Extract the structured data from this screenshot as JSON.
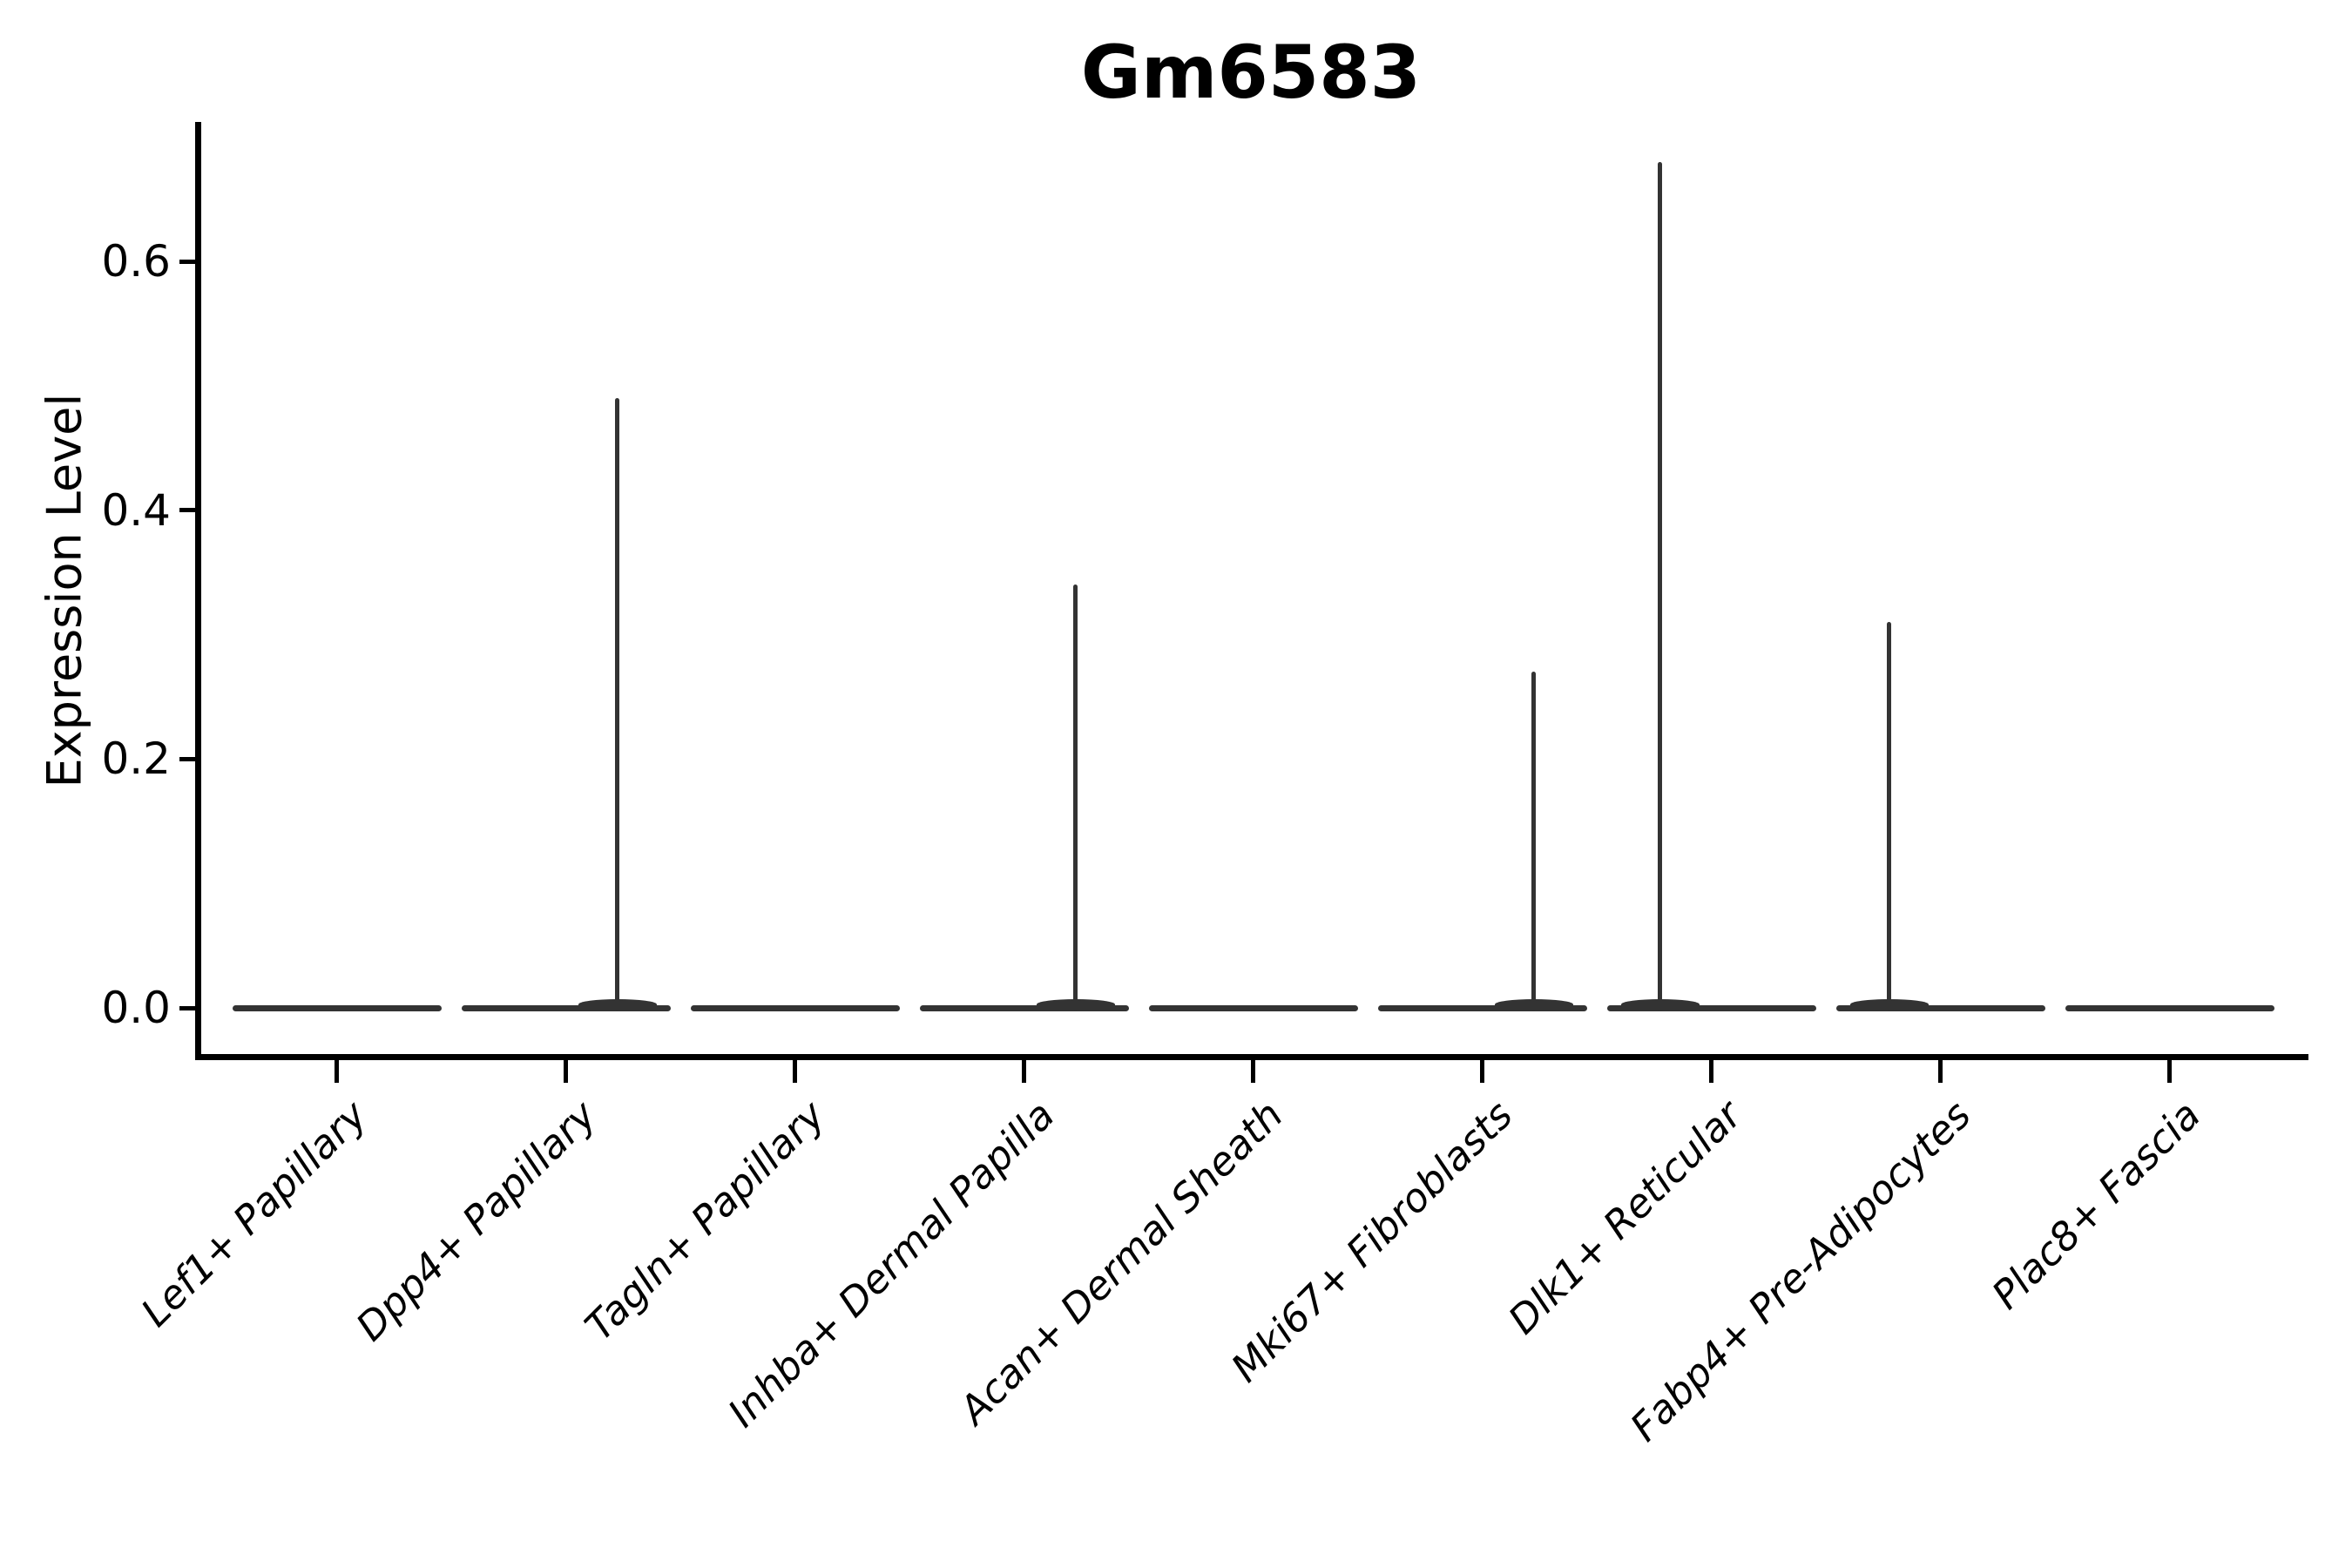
{
  "figure": {
    "background": "#ffffff",
    "text_color": "#000000",
    "axis_color": "#000000",
    "violin_color": "#333333"
  },
  "chart_data": {
    "type": "violin",
    "title": "Gm6583",
    "ylabel": "Expression Level",
    "xlabel": "",
    "grid": false,
    "legend": "none",
    "ylim": [
      -0.04,
      0.712
    ],
    "yticks": [
      0.0,
      0.2,
      0.4,
      0.6
    ],
    "ytick_labels": [
      "0.0",
      "0.2",
      "0.4",
      "0.6"
    ],
    "categories": [
      "Lef1+ Papillary",
      "Dpp4+ Papillary",
      "Tagln+ Papillary",
      "Inhba+ Dermal Papilla",
      "Acan+ Dermal Sheath",
      "Mki67+ Fibroblasts",
      "Dlk1+ Reticular",
      "Fabp4+ Pre-Adipocytes",
      "Plac8+ Fascia"
    ],
    "series": [
      {
        "category": "Lef1+ Papillary",
        "baseline": 0.0,
        "max": 0.0,
        "tail_side": "none"
      },
      {
        "category": "Dpp4+ Papillary",
        "baseline": 0.0,
        "max": 0.49,
        "tail_side": "right"
      },
      {
        "category": "Tagln+ Papillary",
        "baseline": 0.0,
        "max": 0.0,
        "tail_side": "none"
      },
      {
        "category": "Inhba+ Dermal Papilla",
        "baseline": 0.0,
        "max": 0.34,
        "tail_side": "right"
      },
      {
        "category": "Acan+ Dermal Sheath",
        "baseline": 0.0,
        "max": 0.0,
        "tail_side": "none"
      },
      {
        "category": "Mki67+ Fibroblasts",
        "baseline": 0.0,
        "max": 0.27,
        "tail_side": "right"
      },
      {
        "category": "Dlk1+ Reticular",
        "baseline": 0.0,
        "max": 0.68,
        "tail_side": "left"
      },
      {
        "category": "Fabp4+ Pre-Adipocytes",
        "baseline": 0.0,
        "max": 0.31,
        "tail_side": "left"
      },
      {
        "category": "Plac8+ Fascia",
        "baseline": 0.0,
        "max": 0.0,
        "tail_side": "none"
      }
    ]
  }
}
